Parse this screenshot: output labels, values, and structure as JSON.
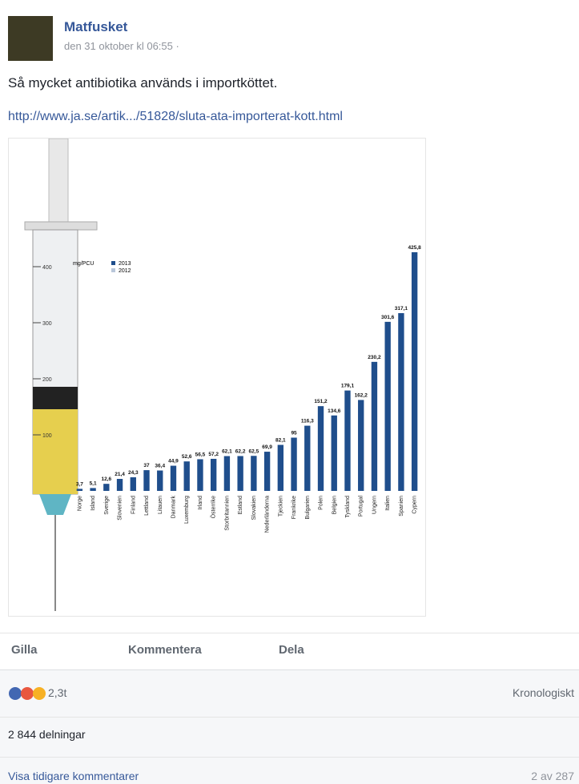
{
  "post": {
    "author": "Matfusket",
    "date": "den 31 oktober kl 06:55 ·",
    "text": "Så mycket antibiotika används i importköttet.",
    "link": "http://www.ja.se/artik.../51828/sluta-ata-importerat-kott.html"
  },
  "chart_data": {
    "type": "bar",
    "unit_label": "mg/PCU",
    "legend_labels": [
      "2013",
      "2012"
    ],
    "categories": [
      "Norge",
      "Island",
      "Sverige",
      "Slovenien",
      "Finland",
      "Lettland",
      "Litauen",
      "Danmark",
      "Luxemburg",
      "Irland",
      "Österrike",
      "Storbritannien",
      "Estland",
      "Slovakien",
      "Nederländerna",
      "Tjeckien",
      "Frankrike",
      "Bulgarien",
      "Polen",
      "Belgien",
      "Tyskland",
      "Portugal",
      "Ungern",
      "Italien",
      "Spanien",
      "Cypern"
    ],
    "values": [
      3.7,
      5.1,
      12.6,
      21.4,
      24.3,
      37,
      36.4,
      44.9,
      52.6,
      56.5,
      57.2,
      62.1,
      62.2,
      62.5,
      69.9,
      82.1,
      95,
      116.3,
      151.2,
      134.6,
      179.1,
      162.2,
      230.2,
      301.6,
      317.1,
      425.8
    ],
    "value_labels": [
      "3,7",
      "5,1",
      "12,6",
      "21,4",
      "24,3",
      "37",
      "36,4",
      "44,9",
      "52,6",
      "56,5",
      "57,2",
      "62,1",
      "62,2",
      "62,5",
      "69,9",
      "82,1",
      "95",
      "116,3",
      "151,2",
      "134,6",
      "179,1",
      "162,2",
      "230,2",
      "301,6",
      "317,1",
      "425,8"
    ],
    "color": "#1f4e8c",
    "ylim": [
      0,
      450
    ],
    "yticks": [
      100,
      200,
      300,
      400
    ]
  },
  "actions": {
    "like": "Gilla",
    "comment": "Kommentera",
    "share": "Dela"
  },
  "footer": {
    "reactions": "2,3t",
    "sort": "Kronologiskt",
    "shares": "2 844 delningar",
    "more_comments": "Visa tidigare kommentarer",
    "count": "2 av 287"
  }
}
